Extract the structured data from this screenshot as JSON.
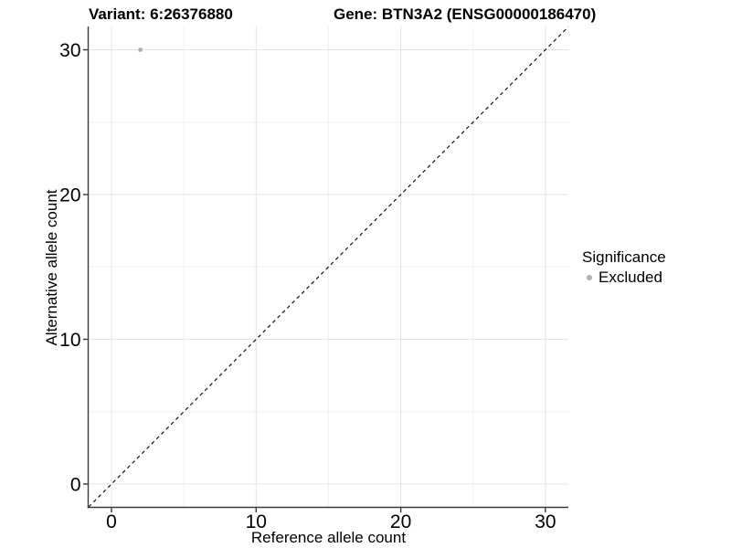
{
  "titles": {
    "variant": "Variant: 6:26376880",
    "gene": "Gene: BTN3A2 (ENSG00000186470)"
  },
  "legend": {
    "title": "Significance",
    "items": [
      {
        "label": "Excluded",
        "color": "#b0b0b0"
      }
    ]
  },
  "chart_data": {
    "type": "scatter",
    "title": "Variant: 6:26376880   Gene: BTN3A2 (ENSG00000186470)",
    "xlabel": "Reference allele count",
    "ylabel": "Alternative allele count",
    "xlim": [
      0,
      30
    ],
    "ylim": [
      0,
      30
    ],
    "x_ticks": [
      0,
      10,
      20,
      30
    ],
    "y_ticks": [
      0,
      10,
      20,
      30
    ],
    "x_minor_ticks": [
      5,
      15,
      25
    ],
    "y_minor_ticks": [
      5,
      15,
      25
    ],
    "grid": true,
    "legend_position": "right",
    "reference_line": {
      "kind": "identity",
      "style": "dashed",
      "color": "#000000"
    },
    "series": [
      {
        "name": "Excluded",
        "color": "#b0b0b0",
        "points": [
          {
            "x": 2,
            "y": 30
          }
        ]
      }
    ]
  },
  "colors": {
    "background": "#ffffff",
    "grid_major": "#e4e4e4",
    "grid_minor": "#f2f2f2",
    "axis_line": "#3c3c3c",
    "tick_mark": "#333333",
    "tick_label": "#000000",
    "point": "#b0b0b0",
    "identity_line": "#000000"
  }
}
